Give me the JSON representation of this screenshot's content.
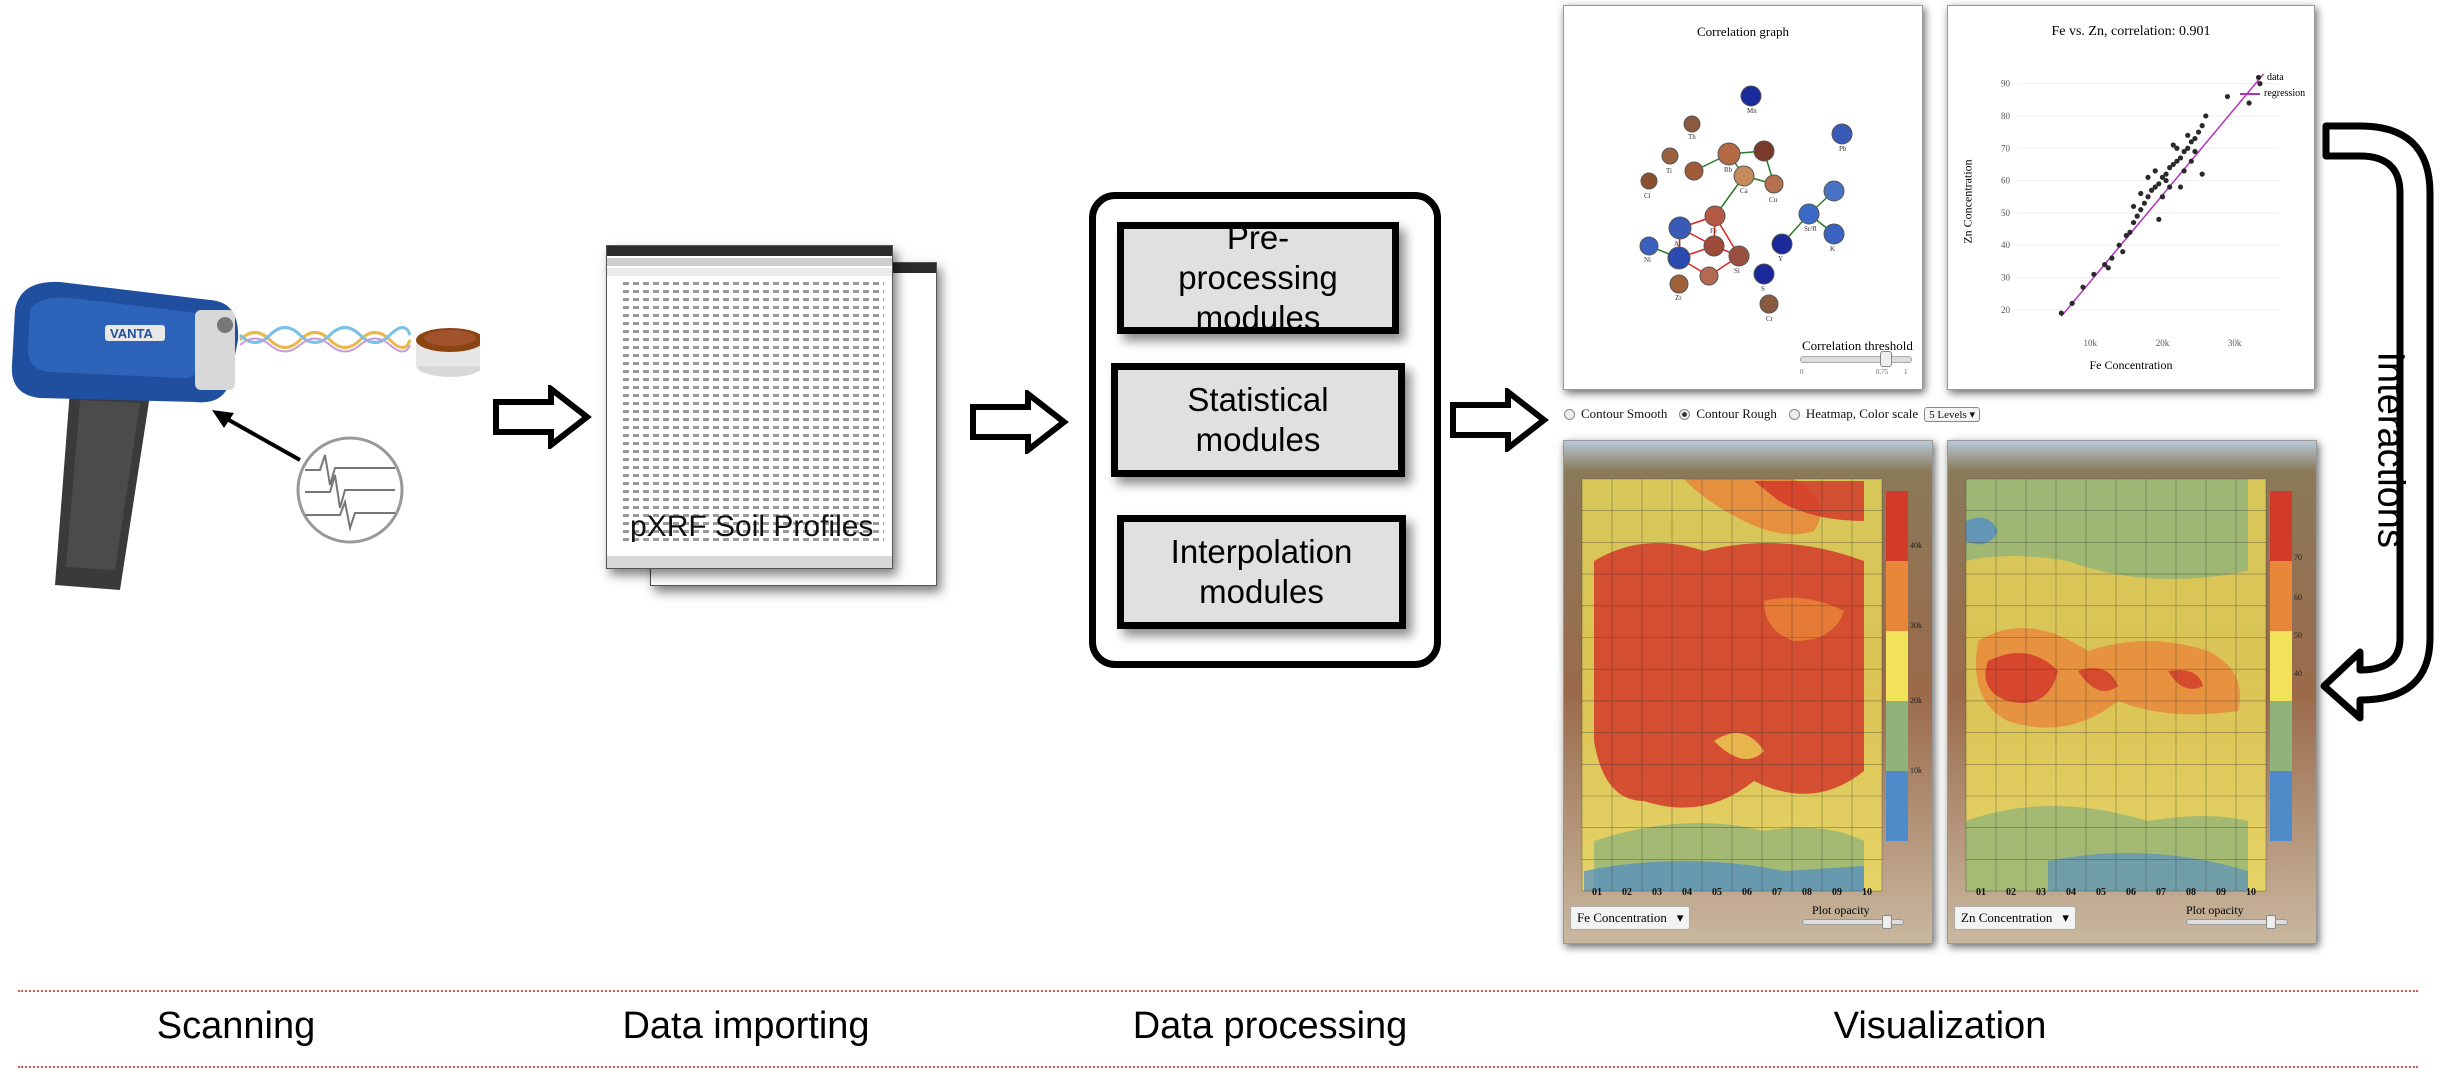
{
  "stages": {
    "scanning": "Scanning",
    "importing": "Data importing",
    "processing": "Data processing",
    "visualization": "Visualization"
  },
  "spreadsheet_caption": "pXRF Soil Profiles",
  "modules": {
    "preprocessing": "Pre-processing modules",
    "statistical": "Statistical modules",
    "interpolation": "Interpolation modules"
  },
  "interactions_label": "Interactions",
  "correlation_panel": {
    "title": "Correlation graph",
    "threshold_label": "Correlation threshold",
    "threshold_value": "0.75",
    "threshold_min": "0",
    "threshold_max": "1",
    "nodes": [
      "Mn",
      "Th",
      "Pb",
      "Rb",
      "Cu",
      "Ca",
      "Fe",
      "Sr",
      "Sr/R",
      "K",
      "Ti",
      "Al",
      "Zn",
      "Ni",
      "Cr",
      "Zr",
      "Y",
      "S",
      "Cl",
      "Si",
      "Ba"
    ]
  },
  "scatter_panel": {
    "title": "Fe vs. Zn, correlation: 0.901",
    "legend": [
      "data",
      "regression"
    ],
    "xlabel": "Fe Concentration",
    "ylabel": "Zn Concentration",
    "xticks": [
      "10k",
      "20k",
      "30k"
    ],
    "yticks": [
      "20",
      "30",
      "40",
      "50",
      "60",
      "70",
      "80",
      "90"
    ]
  },
  "chart_data": {
    "type": "scatter",
    "title": "Fe vs. Zn, correlation: 0.901",
    "xlabel": "Fe Concentration",
    "ylabel": "Zn Concentration",
    "xlim": [
      0,
      36000
    ],
    "ylim": [
      15,
      97
    ],
    "series": [
      {
        "name": "data",
        "x": [
          6000,
          7500,
          9000,
          10500,
          12000,
          13000,
          14000,
          15000,
          15500,
          16000,
          16500,
          17000,
          17500,
          18000,
          18500,
          19000,
          19500,
          20000,
          20500,
          21000,
          21500,
          22000,
          22500,
          23000,
          23500,
          24000,
          24500,
          25000,
          25500,
          26000,
          17000,
          18000,
          19000,
          20000,
          21000,
          22000,
          23000,
          24000,
          19500,
          20500,
          21500,
          22500,
          23500,
          16000,
          14500,
          12500,
          24500,
          25500,
          29000,
          32000,
          33500
        ],
        "y": [
          19,
          22,
          27,
          31,
          34,
          36,
          40,
          43,
          44,
          47,
          49,
          51,
          53,
          55,
          57,
          58,
          59,
          61,
          62,
          64,
          65,
          66,
          67,
          69,
          70,
          72,
          73,
          75,
          77,
          80,
          56,
          61,
          63,
          55,
          58,
          70,
          63,
          66,
          48,
          60,
          71,
          58,
          74,
          52,
          38,
          33,
          69,
          62,
          86,
          84,
          90
        ]
      }
    ],
    "regression": {
      "name": "regression",
      "x": [
        6000,
        34000
      ],
      "y": [
        18,
        93
      ]
    }
  },
  "radio_options": {
    "contour_smooth": "Contour Smooth",
    "contour_rough": "Contour Rough",
    "heatmap": "Heatmap, Color scale",
    "levels": "5 Levels"
  },
  "heatmap_left": {
    "element": "Fe Concentration",
    "opacity_label": "Plot opacity",
    "scale_labels": [
      "40k",
      "30k",
      "20k",
      "10k"
    ]
  },
  "heatmap_right": {
    "element": "Zn Concentration",
    "opacity_label": "Plot opacity",
    "scale_labels": [
      "70",
      "60",
      "50",
      "40"
    ]
  },
  "grid_columns": [
    "01",
    "02",
    "03",
    "04",
    "05",
    "06",
    "07",
    "08",
    "09",
    "10"
  ],
  "colors": {
    "module_fill": "#e0e0e0",
    "divider": "#e05050",
    "device_blue": "#1f4f9e",
    "heat_red": "#d23a2a",
    "heat_orange": "#e8863a",
    "heat_yellow": "#f2e25a",
    "heat_green": "#8fb37a",
    "heat_blue": "#4f8bc9"
  }
}
